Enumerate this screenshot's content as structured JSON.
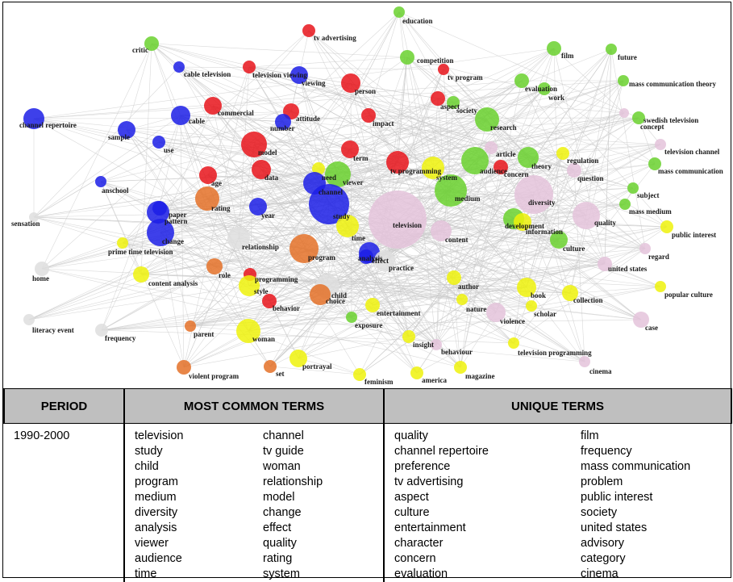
{
  "colors": {
    "red": "#e8141b",
    "blue": "#1c1ee6",
    "green": "#6ad12e",
    "yellow": "#eef20c",
    "orange": "#e47128",
    "pink": "#e4c3db",
    "white": "#dedede",
    "edge": "#c9c9c9"
  },
  "nodes": [
    {
      "label": "education",
      "color": "green"
    },
    {
      "label": "tv advertising",
      "color": "red"
    },
    {
      "label": "critic",
      "color": "green"
    },
    {
      "label": "film",
      "color": "green"
    },
    {
      "label": "future",
      "color": "green"
    },
    {
      "label": "competition",
      "color": "green"
    },
    {
      "label": "tv program",
      "color": "red"
    },
    {
      "label": "cable television",
      "color": "blue"
    },
    {
      "label": "television viewing",
      "color": "red"
    },
    {
      "label": "viewing",
      "color": "blue"
    },
    {
      "label": "person",
      "color": "red"
    },
    {
      "label": "evaluation",
      "color": "green"
    },
    {
      "label": "work",
      "color": "green"
    },
    {
      "label": "mass communication theory",
      "color": "green"
    },
    {
      "label": "aspect",
      "color": "red"
    },
    {
      "label": "society",
      "color": "green"
    },
    {
      "label": "commercial",
      "color": "red"
    },
    {
      "label": "attitude",
      "color": "red"
    },
    {
      "label": "number",
      "color": "blue"
    },
    {
      "label": "impact",
      "color": "red"
    },
    {
      "label": "research",
      "color": "green"
    },
    {
      "label": "swedish television",
      "color": "green"
    },
    {
      "label": "concept",
      "color": "pink"
    },
    {
      "label": "channel repertoire",
      "color": "blue"
    },
    {
      "label": "cable",
      "color": "blue"
    },
    {
      "label": "sample",
      "color": "blue"
    },
    {
      "label": "use",
      "color": "blue"
    },
    {
      "label": "model",
      "color": "red"
    },
    {
      "label": "term",
      "color": "red"
    },
    {
      "label": "article",
      "color": "pink"
    },
    {
      "label": "theory",
      "color": "green"
    },
    {
      "label": "regulation",
      "color": "yellow"
    },
    {
      "label": "television channel",
      "color": "pink"
    },
    {
      "label": "data",
      "color": "red"
    },
    {
      "label": "tv programming",
      "color": "red"
    },
    {
      "label": "system",
      "color": "yellow"
    },
    {
      "label": "audience",
      "color": "green"
    },
    {
      "label": "concern",
      "color": "red"
    },
    {
      "label": "question",
      "color": "pink"
    },
    {
      "label": "mass communication",
      "color": "green"
    },
    {
      "label": "age",
      "color": "red"
    },
    {
      "label": "need",
      "color": "yellow"
    },
    {
      "label": "viewer",
      "color": "green"
    },
    {
      "label": "channel",
      "color": "blue"
    },
    {
      "label": "medium",
      "color": "green"
    },
    {
      "label": "diversity",
      "color": "pink"
    },
    {
      "label": "subject",
      "color": "green"
    },
    {
      "label": "anschool",
      "color": "blue"
    },
    {
      "label": "rating",
      "color": "orange"
    },
    {
      "label": "mass medium",
      "color": "green"
    },
    {
      "label": "paper",
      "color": "blue"
    },
    {
      "label": "pattern",
      "color": "blue"
    },
    {
      "label": "year",
      "color": "blue"
    },
    {
      "label": "study",
      "color": "blue"
    },
    {
      "label": "television",
      "color": "pink"
    },
    {
      "label": "development",
      "color": "green"
    },
    {
      "label": "information",
      "color": "yellow"
    },
    {
      "label": "quality",
      "color": "pink"
    },
    {
      "label": "sensation",
      "color": "white"
    },
    {
      "label": "time",
      "color": "yellow"
    },
    {
      "label": "content",
      "color": "pink"
    },
    {
      "label": "public interest",
      "color": "yellow"
    },
    {
      "label": "change",
      "color": "blue"
    },
    {
      "label": "relationship",
      "color": "white"
    },
    {
      "label": "culture",
      "color": "green"
    },
    {
      "label": "regard",
      "color": "pink"
    },
    {
      "label": "prime time television",
      "color": "yellow"
    },
    {
      "label": "program",
      "color": "orange"
    },
    {
      "label": "analysis",
      "color": "blue"
    },
    {
      "label": "effect",
      "color": "blue"
    },
    {
      "label": "practice",
      "color": "white"
    },
    {
      "label": "united states",
      "color": "pink"
    },
    {
      "label": "home",
      "color": "white"
    },
    {
      "label": "content analysis",
      "color": "yellow"
    },
    {
      "label": "role",
      "color": "orange"
    },
    {
      "label": "programming",
      "color": "red"
    },
    {
      "label": "author",
      "color": "yellow"
    },
    {
      "label": "popular culture",
      "color": "yellow"
    },
    {
      "label": "book",
      "color": "yellow"
    },
    {
      "label": "style",
      "color": "yellow"
    },
    {
      "label": "child",
      "color": "white"
    },
    {
      "label": "choice",
      "color": "orange"
    },
    {
      "label": "collection",
      "color": "yellow"
    },
    {
      "label": "behavior",
      "color": "red"
    },
    {
      "label": "nature",
      "color": "yellow"
    },
    {
      "label": "scholar",
      "color": "yellow"
    },
    {
      "label": "entertainment",
      "color": "yellow"
    },
    {
      "label": "violence",
      "color": "pink"
    },
    {
      "label": "literacy event",
      "color": "white"
    },
    {
      "label": "frequency",
      "color": "white"
    },
    {
      "label": "parent",
      "color": "orange"
    },
    {
      "label": "exposure",
      "color": "green"
    },
    {
      "label": "case",
      "color": "pink"
    },
    {
      "label": "woman",
      "color": "yellow"
    },
    {
      "label": "insight",
      "color": "yellow"
    },
    {
      "label": "behaviour",
      "color": "pink"
    },
    {
      "label": "television programming",
      "color": "yellow"
    },
    {
      "label": "portrayal",
      "color": "yellow"
    },
    {
      "label": "set",
      "color": "orange"
    },
    {
      "label": "violent program",
      "color": "orange"
    },
    {
      "label": "cinema",
      "color": "pink"
    },
    {
      "label": "feminism",
      "color": "yellow"
    },
    {
      "label": "america",
      "color": "yellow"
    },
    {
      "label": "magazine",
      "color": "yellow"
    }
  ],
  "table": {
    "headers": {
      "period": "PERIOD",
      "common": "MOST COMMON TERMS",
      "unique": "UNIQUE TERMS"
    },
    "row": {
      "period": "1990-2000",
      "common_col1": [
        "television",
        "study",
        "child",
        "program",
        "medium",
        "diversity",
        "analysis",
        "viewer",
        "audience",
        "time"
      ],
      "common_col2": [
        "channel",
        "tv guide",
        "woman",
        "relationship",
        "model",
        "change",
        "effect",
        "quality",
        "rating",
        "system"
      ],
      "unique_col1": [
        "quality",
        "channel repertoire",
        "preference",
        "tv advertising",
        "aspect",
        "culture",
        "entertainment",
        "character",
        "concern",
        "evaluation"
      ],
      "unique_col2": [
        "film",
        "frequency",
        "mass communication",
        "problem",
        "public interest",
        "society",
        "united states",
        "advisory",
        "category",
        "cinema"
      ]
    }
  }
}
